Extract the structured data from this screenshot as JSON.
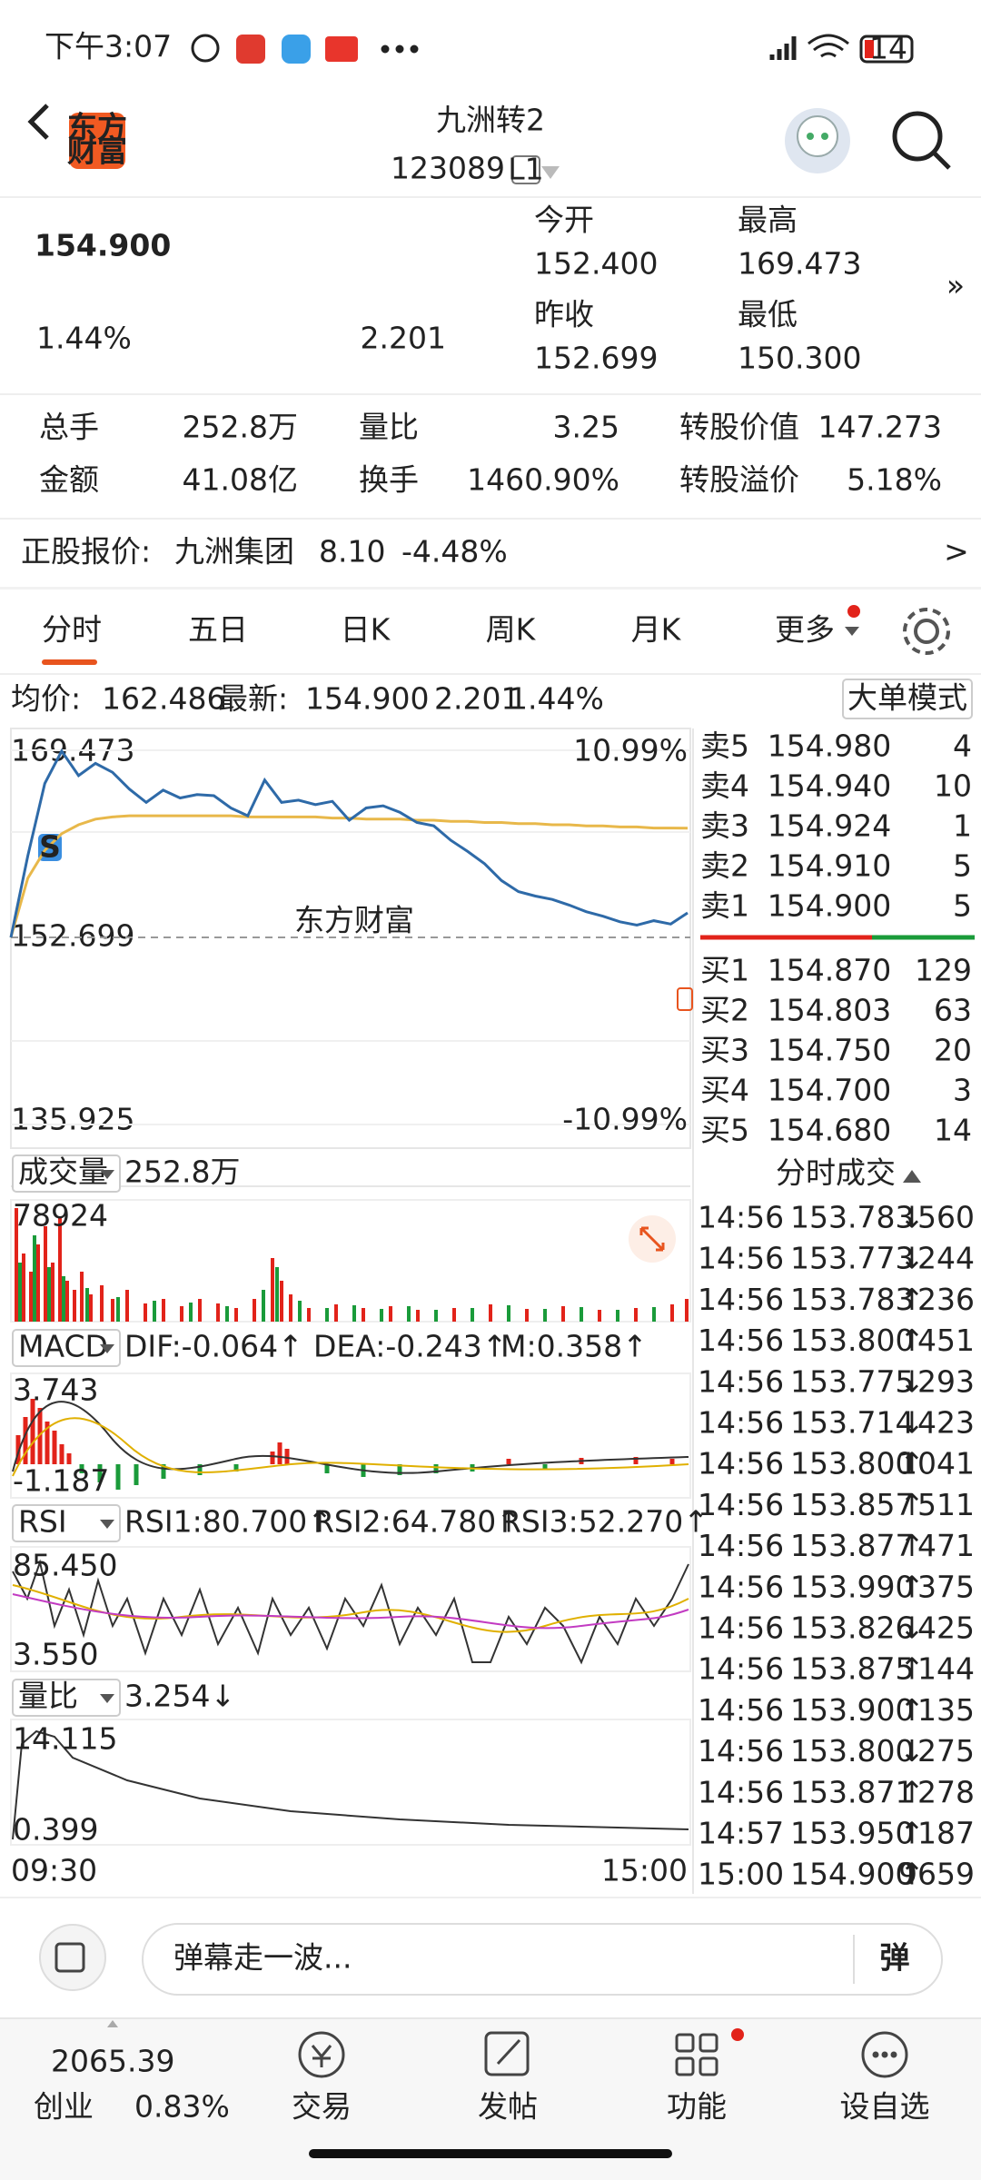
{
  "status_bar": {
    "time": "下午3:07",
    "battery": "14"
  },
  "header": {
    "title": "九洲转2",
    "code": "123089",
    "level": "L1",
    "logo": [
      "东方",
      "财富"
    ]
  },
  "quote": {
    "price": "154.900",
    "change_pct": "1.44%",
    "change": "2.201",
    "fields": [
      {
        "label": "今开",
        "value": "152.400",
        "color": "#1a9b3a"
      },
      {
        "label": "最高",
        "value": "169.473",
        "color": "#e2231a"
      },
      {
        "label": "昨收",
        "value": "152.699",
        "color": "#222222"
      },
      {
        "label": "最低",
        "value": "150.300",
        "color": "#1a9b3a"
      }
    ]
  },
  "stats": [
    {
      "label": "总手",
      "value": "252.8万"
    },
    {
      "label": "量比",
      "value": "3.25"
    },
    {
      "label": "转股价值",
      "value": "147.273",
      "color": "#222222"
    },
    {
      "label": "金额",
      "value": "41.08亿"
    },
    {
      "label": "换手",
      "value": "1460.90%"
    },
    {
      "label": "转股溢价",
      "value": "5.18%",
      "color": "#e2231a"
    }
  ],
  "underlying": {
    "label": "正股报价:",
    "name": "九洲集团",
    "price": "8.10",
    "change": "-4.48%",
    "more": ">"
  },
  "tabs": {
    "items": [
      "分时",
      "五日",
      "日K",
      "周K",
      "月K",
      "更多"
    ],
    "active": 0
  },
  "info": {
    "avg_label": "均价:",
    "avg": "162.486",
    "last_label": "最新:",
    "last": "154.900",
    "change": "2.201",
    "pct": "1.44%",
    "mode": "大单模式"
  },
  "chart_data": {
    "type": "line",
    "ylim": [
      135.925,
      169.473
    ],
    "yticks": [
      169.473,
      152.699,
      135.925
    ],
    "ytick_colors": [
      "#e2231a",
      "#888888",
      "#1a9b3a"
    ],
    "pct_labels": [
      "10.99%",
      "-10.99%"
    ],
    "series": [
      {
        "color": "#2e6aa8",
        "values": [
          152.7,
          160,
          166.5,
          169.4,
          167.2,
          168.3,
          167.5,
          166,
          164.8,
          165.9,
          165.2,
          165.5,
          165.4,
          164.3,
          163.6,
          166.8,
          164.8,
          165,
          164.6,
          164.9,
          163.2,
          164.3,
          164.5,
          163.9,
          163,
          162.7,
          161.4,
          160.4,
          159.3,
          157.8,
          156.8,
          156.4,
          156.1,
          155.6,
          155,
          154.6,
          154.1,
          153.8,
          154.2,
          153.9,
          154.9
        ]
      },
      {
        "color": "#e8b84a",
        "values": [
          152.7,
          158,
          160.5,
          162,
          162.8,
          163.3,
          163.5,
          163.6,
          163.6,
          163.6,
          163.6,
          163.6,
          163.6,
          163.6,
          163.5,
          163.5,
          163.5,
          163.5,
          163.5,
          163.4,
          163.4,
          163.3,
          163.3,
          163.3,
          163.2,
          163.2,
          163.1,
          163.1,
          163,
          163,
          162.9,
          162.9,
          162.8,
          162.8,
          162.7,
          162.7,
          162.6,
          162.6,
          162.5,
          162.5,
          162.486
        ]
      }
    ]
  },
  "order_book": {
    "asks": [
      {
        "label": "卖5",
        "price": "154.980",
        "volume": 4
      },
      {
        "label": "卖4",
        "price": "154.940",
        "volume": 10
      },
      {
        "label": "卖3",
        "price": "154.924",
        "volume": 1
      },
      {
        "label": "卖2",
        "price": "154.910",
        "volume": 5
      },
      {
        "label": "卖1",
        "price": "154.900",
        "volume": 5
      }
    ],
    "bids": [
      {
        "label": "买1",
        "price": "154.870",
        "volume": 129
      },
      {
        "label": "买2",
        "price": "154.803",
        "volume": 63
      },
      {
        "label": "买3",
        "price": "154.750",
        "volume": 20
      },
      {
        "label": "买4",
        "price": "154.700",
        "volume": 3
      },
      {
        "label": "买5",
        "price": "154.680",
        "volume": 14
      }
    ]
  },
  "indicators": {
    "volume": {
      "label": "成交量",
      "value": "252.8万",
      "max": "78924"
    },
    "macd": {
      "label": "MACD",
      "dif": "DIF:-0.064↑",
      "dea": "DEA:-0.243↑",
      "m": "M:0.358↑",
      "max": "3.743",
      "min": "-1.187"
    },
    "rsi": {
      "label": "RSI",
      "rsi1": "RSI1:80.700↑",
      "rsi2": "RSI2:64.780↑",
      "rsi3": "RSI3:52.270↑",
      "max": "85.450",
      "min": "3.550"
    },
    "ratio": {
      "label": "量比",
      "value": "3.254↓",
      "max": "14.115",
      "min": "0.399"
    },
    "time_axis": [
      "09:30",
      "15:00"
    ]
  },
  "trades": {
    "title": "分时成交",
    "rows": [
      {
        "time": "14:56",
        "price": "153.783",
        "dir": "↓",
        "volume": 560,
        "color": "#1a9b3a"
      },
      {
        "time": "14:56",
        "price": "153.773",
        "dir": "↓",
        "volume": 244,
        "color": "#1a9b3a"
      },
      {
        "time": "14:56",
        "price": "153.783",
        "dir": "↑",
        "volume": 236,
        "color": "#e2231a"
      },
      {
        "time": "14:56",
        "price": "153.800",
        "dir": "↑",
        "volume": 451,
        "color": "#e2231a"
      },
      {
        "time": "14:56",
        "price": "153.775",
        "dir": "↓",
        "volume": 293,
        "color": "#1a9b3a"
      },
      {
        "time": "14:56",
        "price": "153.714",
        "dir": "↓",
        "volume": 423,
        "color": "#1a9b3a"
      },
      {
        "time": "14:56",
        "price": "153.800",
        "dir": "↑",
        "volume": 1041,
        "color": "#e2231a"
      },
      {
        "time": "14:56",
        "price": "153.857",
        "dir": "↑",
        "volume": 511,
        "color": "#e2231a"
      },
      {
        "time": "14:56",
        "price": "153.877",
        "dir": "↑",
        "volume": 471,
        "color": "#e2231a"
      },
      {
        "time": "14:56",
        "price": "153.990",
        "dir": "↑",
        "volume": 375,
        "color": "#e2231a"
      },
      {
        "time": "14:56",
        "price": "153.826",
        "dir": "↓",
        "volume": 425,
        "color": "#1a9b3a"
      },
      {
        "time": "14:56",
        "price": "153.875",
        "dir": "↑",
        "volume": 144,
        "color": "#e2231a"
      },
      {
        "time": "14:56",
        "price": "153.900",
        "dir": "↑",
        "volume": 135,
        "color": "#e2231a"
      },
      {
        "time": "14:56",
        "price": "153.800",
        "dir": "↓",
        "volume": 275,
        "color": "#1a9b3a"
      },
      {
        "time": "14:56",
        "price": "153.871",
        "dir": "↑",
        "volume": 278,
        "color": "#e2231a"
      },
      {
        "time": "14:57",
        "price": "153.950",
        "dir": "↑",
        "volume": 187,
        "color": "#e2231a"
      },
      {
        "time": "15:00",
        "price": "154.900",
        "dir": "↑",
        "volume": 9659,
        "color": "#e2231a"
      }
    ]
  },
  "input": {
    "placeholder": "弹幕走一波...",
    "button": "弹"
  },
  "bottom_nav": {
    "index": {
      "value": "2065.39",
      "name": "创业",
      "pct": "0.83%"
    },
    "items": [
      "交易",
      "发帖",
      "功能",
      "设自选"
    ]
  }
}
